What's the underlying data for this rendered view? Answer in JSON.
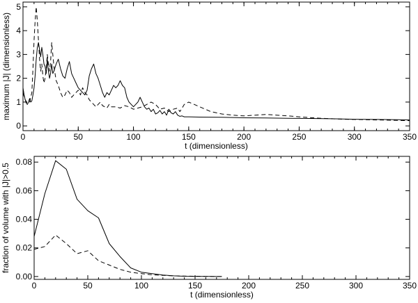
{
  "chart_data": [
    {
      "type": "line",
      "title": "",
      "xlabel": "t (dimensionless)",
      "ylabel": "maximum |J| (dimensionless)",
      "xlim": [
        0,
        350
      ],
      "ylim": [
        -0.2,
        5.2
      ],
      "xticks": [
        0,
        50,
        100,
        150,
        200,
        250,
        300,
        350
      ],
      "yticks": [
        0,
        1,
        2,
        3,
        4,
        5
      ],
      "xtick_labels": [
        "0",
        "50",
        "100",
        "150",
        "200",
        "250",
        "300",
        "350"
      ],
      "ytick_labels": [
        "0",
        "1",
        "2",
        "3",
        "4",
        "5"
      ],
      "series": [
        {
          "name": "solid",
          "style": "solid",
          "x": [
            0,
            1,
            2,
            3,
            4,
            5,
            6,
            7,
            8,
            9,
            10,
            11,
            12,
            13,
            14,
            15,
            16,
            17,
            18,
            19,
            20,
            21,
            22,
            23,
            24,
            25,
            26,
            27,
            28,
            30,
            32,
            34,
            36,
            38,
            40,
            42,
            44,
            46,
            48,
            50,
            52,
            54,
            56,
            58,
            60,
            62,
            64,
            66,
            68,
            70,
            72,
            74,
            76,
            78,
            80,
            82,
            84,
            86,
            88,
            90,
            92,
            94,
            96,
            98,
            100,
            102,
            104,
            106,
            108,
            110,
            112,
            114,
            116,
            118,
            120,
            122,
            124,
            126,
            128,
            130,
            132,
            134,
            136,
            138,
            140,
            142,
            144,
            146,
            150,
            160,
            180,
            200,
            220,
            240,
            260,
            280,
            300,
            320,
            340,
            350
          ],
          "y": [
            1.6,
            1.3,
            1.1,
            0.95,
            0.9,
            1.0,
            1.15,
            1.0,
            1.05,
            1.3,
            1.6,
            2.1,
            2.8,
            3.3,
            3.5,
            3.2,
            2.9,
            3.3,
            3.0,
            2.6,
            2.5,
            2.2,
            2.8,
            2.3,
            2.0,
            2.2,
            2.6,
            2.2,
            2.3,
            2.6,
            2.8,
            2.4,
            2.1,
            2.0,
            2.4,
            2.7,
            2.2,
            2.0,
            1.8,
            1.6,
            1.5,
            1.4,
            1.3,
            1.5,
            2.1,
            2.4,
            2.6,
            2.2,
            2.0,
            1.7,
            1.4,
            1.2,
            1.4,
            1.3,
            1.5,
            1.7,
            1.6,
            1.7,
            1.9,
            1.7,
            1.6,
            1.2,
            1.0,
            0.9,
            0.8,
            0.9,
            1.0,
            1.2,
            1.0,
            0.8,
            0.7,
            0.75,
            0.6,
            0.7,
            0.5,
            0.55,
            0.65,
            0.5,
            0.6,
            0.45,
            0.7,
            0.55,
            0.5,
            0.6,
            0.45,
            0.4,
            0.42,
            0.38,
            0.38,
            0.37,
            0.36,
            0.34,
            0.33,
            0.32,
            0.31,
            0.3,
            0.28,
            0.27,
            0.26,
            0.25
          ]
        },
        {
          "name": "dashed",
          "style": "dashed",
          "x": [
            0,
            2,
            4,
            6,
            8,
            9,
            10,
            11,
            12,
            13,
            14,
            15,
            16,
            17,
            18,
            19,
            20,
            21,
            22,
            23,
            24,
            25,
            26,
            27,
            28,
            29,
            30,
            32,
            34,
            36,
            38,
            40,
            42,
            44,
            46,
            48,
            50,
            52,
            54,
            56,
            58,
            60,
            62,
            64,
            66,
            68,
            70,
            72,
            74,
            76,
            78,
            80,
            84,
            88,
            92,
            96,
            100,
            104,
            108,
            112,
            116,
            120,
            124,
            128,
            132,
            136,
            140,
            142,
            146,
            150,
            160,
            170,
            180,
            190,
            200,
            210,
            220,
            230,
            240,
            250,
            260,
            270,
            280,
            290,
            300,
            310,
            320,
            330,
            340,
            350
          ],
          "y": [
            1.4,
            1.1,
            0.95,
            1.0,
            1.4,
            2.4,
            3.6,
            4.4,
            5.0,
            4.4,
            3.6,
            2.8,
            2.3,
            2.6,
            2.1,
            1.8,
            2.0,
            2.4,
            3.0,
            2.6,
            2.3,
            2.7,
            3.5,
            3.0,
            2.5,
            2.2,
            1.9,
            1.7,
            1.4,
            1.2,
            1.3,
            1.5,
            1.4,
            1.2,
            1.3,
            1.4,
            1.5,
            1.3,
            1.6,
            1.4,
            1.3,
            1.1,
            1.0,
            0.9,
            0.8,
            0.9,
            1.0,
            0.85,
            0.8,
            0.75,
            0.9,
            0.8,
            0.8,
            0.75,
            0.85,
            0.8,
            0.7,
            0.75,
            0.8,
            0.9,
            1.0,
            0.9,
            0.7,
            0.75,
            0.6,
            0.7,
            0.75,
            0.6,
            0.9,
            1.0,
            0.8,
            0.6,
            0.5,
            0.45,
            0.42,
            0.45,
            0.48,
            0.45,
            0.42,
            0.38,
            0.35,
            0.32,
            0.3,
            0.28,
            0.27,
            0.26,
            0.25,
            0.24,
            0.23,
            0.22
          ]
        }
      ]
    },
    {
      "type": "line",
      "title": "",
      "xlabel": "t (dimensionless)",
      "ylabel": "fraction of volume with |J|>0.5",
      "xlim": [
        0,
        350
      ],
      "ylim": [
        -0.002,
        0.084
      ],
      "xticks": [
        0,
        50,
        100,
        150,
        200,
        250,
        300,
        350
      ],
      "yticks": [
        0,
        0.02,
        0.04,
        0.06,
        0.08
      ],
      "xtick_labels": [
        "0",
        "50",
        "100",
        "150",
        "200",
        "250",
        "300",
        "350"
      ],
      "ytick_labels": [
        "0.00",
        "0.02",
        "0.04",
        "0.06",
        "0.08"
      ],
      "series": [
        {
          "name": "solid",
          "style": "solid",
          "x": [
            0,
            10,
            20,
            30,
            40,
            50,
            60,
            70,
            80,
            90,
            100,
            110,
            120,
            130,
            140,
            150,
            160,
            170,
            175
          ],
          "y": [
            0.028,
            0.058,
            0.081,
            0.075,
            0.054,
            0.046,
            0.041,
            0.023,
            0.014,
            0.006,
            0.003,
            0.002,
            0.001,
            0.0005,
            0.0002,
            0.0001,
            0.0001,
            0.0,
            0.0
          ]
        },
        {
          "name": "dashed",
          "style": "dashed",
          "x": [
            0,
            10,
            20,
            30,
            40,
            50,
            60,
            70,
            80,
            90,
            100,
            110,
            120,
            130,
            140,
            150,
            160,
            170,
            175
          ],
          "y": [
            0.019,
            0.021,
            0.029,
            0.023,
            0.016,
            0.018,
            0.011,
            0.008,
            0.005,
            0.003,
            0.002,
            0.0012,
            0.0008,
            0.0005,
            0.0003,
            0.0002,
            0.0001,
            0.0,
            0.0
          ]
        }
      ]
    }
  ]
}
